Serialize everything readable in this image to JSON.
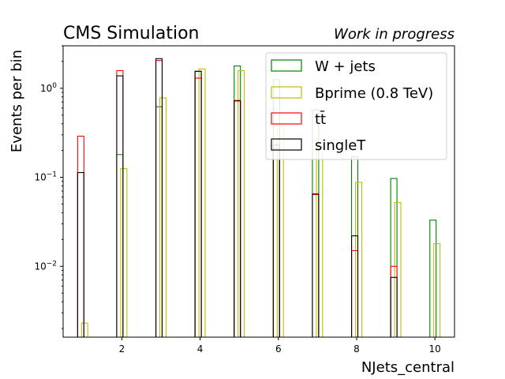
{
  "chart_data": {
    "type": "bar",
    "style": "step-histogram",
    "title": "CMS Simulation",
    "subtitle": "Work in progress",
    "xlabel": "NJets_central",
    "ylabel": "Events per bin",
    "xlim": [
      0.5,
      10.5
    ],
    "xticks": [
      2,
      4,
      6,
      8,
      10
    ],
    "ylim": [
      0.0016,
      3.0
    ],
    "yscale": "log",
    "ytick_labels": [
      {
        "value": 0.01,
        "base": "10",
        "exp": "−2"
      },
      {
        "value": 0.1,
        "base": "10",
        "exp": "−1"
      },
      {
        "value": 1,
        "base": "10",
        "exp": "0"
      }
    ],
    "grid": false,
    "legend_position": "top-right",
    "series": [
      {
        "name": "W + jets",
        "color": "#008000",
        "bin_offset": -0.05,
        "x": [
          1,
          2,
          3,
          4,
          5,
          6,
          7,
          8,
          9,
          10
        ],
        "values": [
          null,
          0.18,
          0.62,
          1.55,
          1.78,
          1.25,
          0.57,
          0.17,
          0.097,
          0.033
        ]
      },
      {
        "name": "Bprime (0.8 TeV)",
        "color": "#bfbf00",
        "bin_offset": 0.05,
        "x": [
          1,
          2,
          3,
          4,
          5,
          6,
          7,
          8,
          9,
          10
        ],
        "values": [
          0.0023,
          0.125,
          0.78,
          1.65,
          1.58,
          0.38,
          0.27,
          0.088,
          0.052,
          0.018
        ]
      },
      {
        "name": "tt̄",
        "color": "#ff0000",
        "bin_offset": -0.05,
        "x": [
          1,
          2,
          3,
          4,
          5,
          6,
          7,
          8,
          9,
          10
        ],
        "values": [
          0.29,
          1.58,
          2.05,
          1.3,
          0.73,
          0.21,
          0.064,
          0.015,
          0.01,
          null
        ]
      },
      {
        "name": "singleT",
        "color": "#000000",
        "bin_offset": -0.05,
        "x": [
          1,
          2,
          3,
          4,
          5,
          6,
          7,
          8,
          9,
          10
        ],
        "values": [
          0.113,
          1.38,
          2.15,
          1.55,
          0.72,
          0.23,
          0.065,
          0.022,
          0.0075,
          null
        ]
      }
    ]
  }
}
